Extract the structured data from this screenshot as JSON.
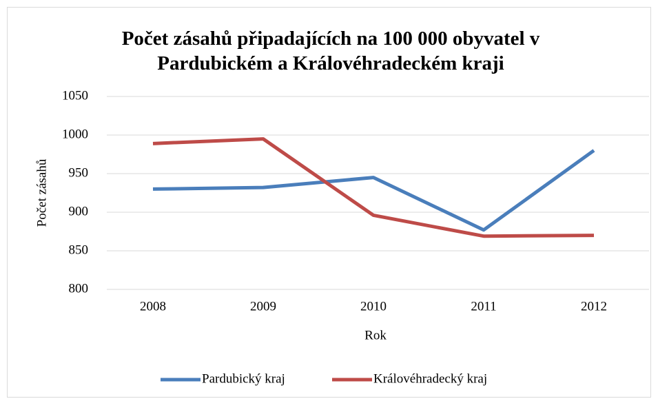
{
  "chart_data": {
    "type": "line",
    "title": "Počet zásahů připadajících na 100 000 obyvatel v Pardubickém a Královéhradeckém kraji",
    "x_label": "Rok",
    "y_label": "Počet zásahů",
    "categories": [
      "2008",
      "2009",
      "2010",
      "2011",
      "2012"
    ],
    "series": [
      {
        "name": "Pardubický kraj",
        "color": "#4a7ebb",
        "values": [
          930,
          932,
          945,
          877,
          980
        ]
      },
      {
        "name": "Královéhradecký kraj",
        "color": "#be4b48",
        "values": [
          989,
          995,
          896,
          869,
          870
        ]
      }
    ],
    "ylim": [
      800,
      1050
    ],
    "yticks": [
      800,
      850,
      900,
      950,
      1000,
      1050
    ],
    "grid": true,
    "legend": "bottom"
  }
}
